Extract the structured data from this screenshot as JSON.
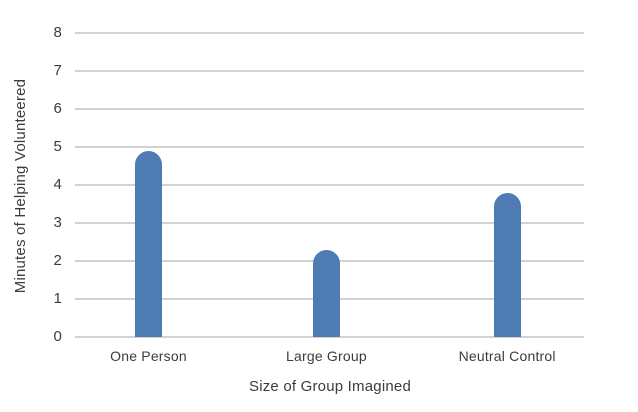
{
  "chart_data": {
    "type": "bar",
    "categories": [
      "One Person",
      "Large Group",
      "Neutral Control"
    ],
    "values": [
      4.9,
      2.3,
      3.8
    ],
    "xlabel": "Size of Group Imagined",
    "ylabel": "Minutes of Helping Volunteered",
    "ylim": [
      0,
      8
    ],
    "yticks": [
      0,
      1,
      2,
      3,
      4,
      5,
      6,
      7,
      8
    ],
    "grid": "horizontal-only",
    "legend": "none",
    "bar_color": "#4E7BB3",
    "gridline_color": "#D2D2D2",
    "text_color": "#3C3C3C",
    "background_color": "#FFFFFF",
    "bar_style": "rounded-top"
  }
}
